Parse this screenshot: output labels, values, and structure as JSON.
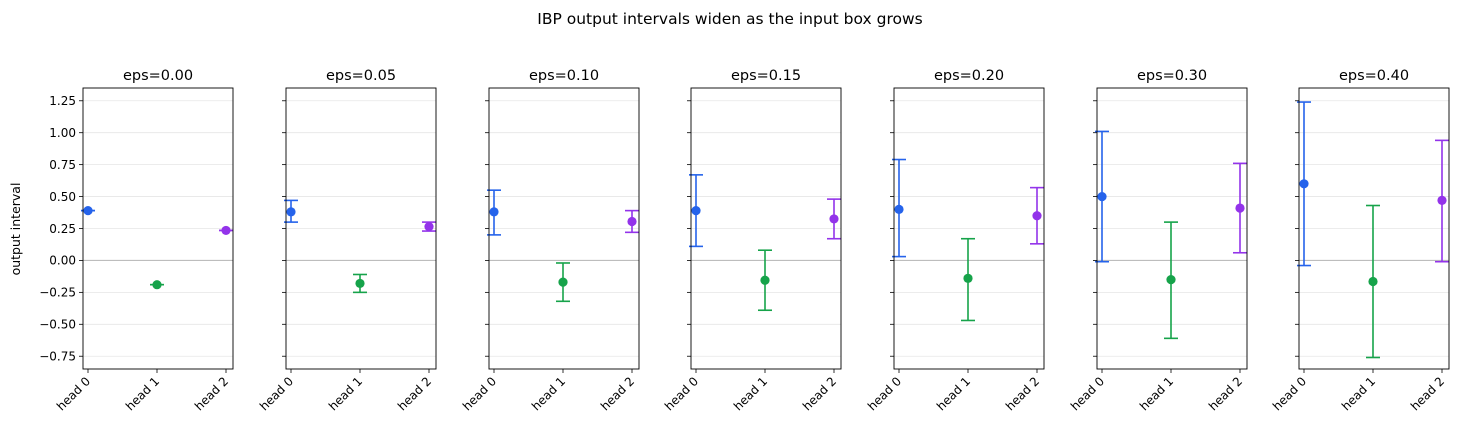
{
  "figure": {
    "suptitle": "IBP output intervals widen as the input box grows"
  },
  "chart_data": {
    "type": "errorbar",
    "ylabel": "output interval",
    "ylim": [
      -0.85,
      1.35
    ],
    "yticks": [
      -0.75,
      -0.5,
      -0.25,
      0.0,
      0.25,
      0.5,
      0.75,
      1.0,
      1.25
    ],
    "ytick_labels": [
      "−0.75",
      "−0.50",
      "−0.25",
      "0.00",
      "0.25",
      "0.50",
      "0.75",
      "1.00",
      "1.25"
    ],
    "categories": [
      "head 0",
      "head 1",
      "head 2"
    ],
    "colors": [
      "#2563eb",
      "#16a34a",
      "#9333ea"
    ],
    "grid": "y",
    "zero_line": true,
    "sharey": true,
    "panels": [
      {
        "title": "eps=0.00",
        "center": [
          0.39,
          -0.19,
          0.235
        ],
        "lower": [
          0.39,
          -0.19,
          0.235
        ],
        "upper": [
          0.39,
          -0.19,
          0.235
        ]
      },
      {
        "title": "eps=0.05",
        "center": [
          0.38,
          -0.18,
          0.265
        ],
        "lower": [
          0.3,
          -0.25,
          0.23
        ],
        "upper": [
          0.47,
          -0.11,
          0.3
        ]
      },
      {
        "title": "eps=0.10",
        "center": [
          0.38,
          -0.17,
          0.305
        ],
        "lower": [
          0.2,
          -0.32,
          0.22
        ],
        "upper": [
          0.55,
          -0.02,
          0.39
        ]
      },
      {
        "title": "eps=0.15",
        "center": [
          0.39,
          -0.155,
          0.325
        ],
        "lower": [
          0.11,
          -0.39,
          0.17
        ],
        "upper": [
          0.67,
          0.08,
          0.48
        ]
      },
      {
        "title": "eps=0.20",
        "center": [
          0.4,
          -0.14,
          0.35
        ],
        "lower": [
          0.03,
          -0.47,
          0.13
        ],
        "upper": [
          0.79,
          0.17,
          0.57
        ]
      },
      {
        "title": "eps=0.30",
        "center": [
          0.5,
          -0.15,
          0.41
        ],
        "lower": [
          -0.01,
          -0.61,
          0.06
        ],
        "upper": [
          1.01,
          0.3,
          0.76
        ]
      },
      {
        "title": "eps=0.40",
        "center": [
          0.6,
          -0.165,
          0.47
        ],
        "lower": [
          -0.04,
          -0.76,
          -0.01
        ],
        "upper": [
          1.24,
          0.43,
          0.94
        ]
      }
    ]
  }
}
